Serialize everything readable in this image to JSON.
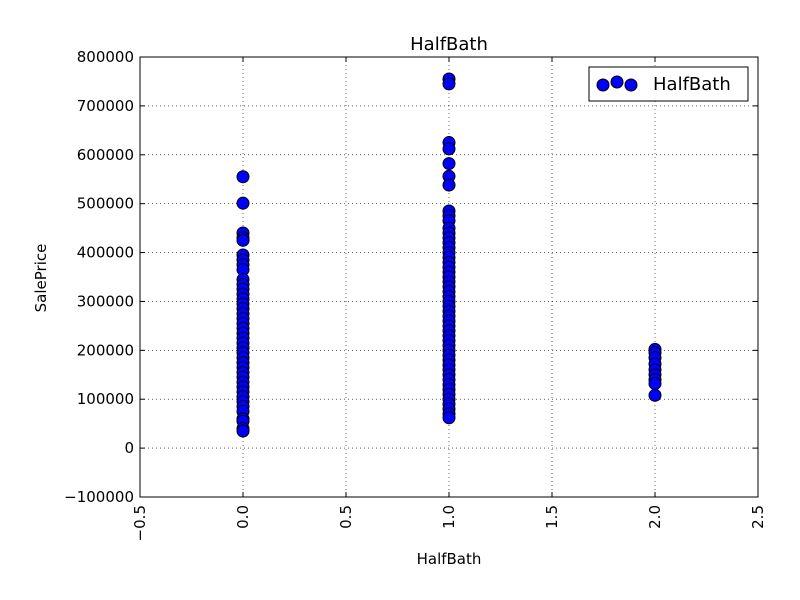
{
  "chart_data": {
    "type": "scatter",
    "title": "HalfBath",
    "xlabel": "HalfBath",
    "ylabel": "SalePrice",
    "xlim": [
      -0.5,
      2.5
    ],
    "ylim": [
      -100000,
      800000
    ],
    "xticks": [
      -0.5,
      0.0,
      0.5,
      1.0,
      1.5,
      2.0,
      2.5
    ],
    "xtick_labels": [
      "−0.5",
      "0.0",
      "0.5",
      "1.0",
      "1.5",
      "2.0",
      "2.5"
    ],
    "yticks": [
      -100000,
      0,
      100000,
      200000,
      300000,
      400000,
      500000,
      600000,
      700000,
      800000
    ],
    "ytick_labels": [
      "−100000",
      "0",
      "100000",
      "200000",
      "300000",
      "400000",
      "500000",
      "600000",
      "700000",
      "800000"
    ],
    "grid": true,
    "legend": {
      "placement": "top-right",
      "entries": [
        "HalfBath"
      ]
    },
    "marker_color": "#0000ff",
    "series": [
      {
        "name": "HalfBath",
        "points": [
          [
            0,
            555000
          ],
          [
            0,
            501000
          ],
          [
            0,
            440000
          ],
          [
            0,
            430000
          ],
          [
            0,
            425000
          ],
          [
            0,
            395000
          ],
          [
            0,
            385000
          ],
          [
            0,
            375000
          ],
          [
            0,
            365000
          ],
          [
            0,
            345000
          ],
          [
            0,
            335000
          ],
          [
            0,
            325000
          ],
          [
            0,
            315000
          ],
          [
            0,
            305000
          ],
          [
            0,
            295000
          ],
          [
            0,
            285000
          ],
          [
            0,
            275000
          ],
          [
            0,
            265000
          ],
          [
            0,
            255000
          ],
          [
            0,
            245000
          ],
          [
            0,
            235000
          ],
          [
            0,
            225000
          ],
          [
            0,
            215000
          ],
          [
            0,
            205000
          ],
          [
            0,
            195000
          ],
          [
            0,
            185000
          ],
          [
            0,
            175000
          ],
          [
            0,
            165000
          ],
          [
            0,
            155000
          ],
          [
            0,
            145000
          ],
          [
            0,
            135000
          ],
          [
            0,
            125000
          ],
          [
            0,
            115000
          ],
          [
            0,
            105000
          ],
          [
            0,
            95000
          ],
          [
            0,
            85000
          ],
          [
            0,
            75000
          ],
          [
            0,
            60000
          ],
          [
            0,
            55000
          ],
          [
            0,
            40000
          ],
          [
            0,
            35000
          ],
          [
            1,
            755000
          ],
          [
            1,
            745000
          ],
          [
            1,
            625000
          ],
          [
            1,
            612000
          ],
          [
            1,
            582000
          ],
          [
            1,
            556000
          ],
          [
            1,
            538000
          ],
          [
            1,
            485000
          ],
          [
            1,
            475000
          ],
          [
            1,
            465000
          ],
          [
            1,
            450000
          ],
          [
            1,
            440000
          ],
          [
            1,
            430000
          ],
          [
            1,
            420000
          ],
          [
            1,
            410000
          ],
          [
            1,
            400000
          ],
          [
            1,
            390000
          ],
          [
            1,
            380000
          ],
          [
            1,
            370000
          ],
          [
            1,
            360000
          ],
          [
            1,
            350000
          ],
          [
            1,
            340000
          ],
          [
            1,
            330000
          ],
          [
            1,
            320000
          ],
          [
            1,
            310000
          ],
          [
            1,
            300000
          ],
          [
            1,
            290000
          ],
          [
            1,
            280000
          ],
          [
            1,
            270000
          ],
          [
            1,
            260000
          ],
          [
            1,
            250000
          ],
          [
            1,
            240000
          ],
          [
            1,
            230000
          ],
          [
            1,
            220000
          ],
          [
            1,
            210000
          ],
          [
            1,
            200000
          ],
          [
            1,
            190000
          ],
          [
            1,
            180000
          ],
          [
            1,
            170000
          ],
          [
            1,
            160000
          ],
          [
            1,
            150000
          ],
          [
            1,
            140000
          ],
          [
            1,
            130000
          ],
          [
            1,
            120000
          ],
          [
            1,
            110000
          ],
          [
            1,
            100000
          ],
          [
            1,
            90000
          ],
          [
            1,
            80000
          ],
          [
            1,
            70000
          ],
          [
            1,
            62000
          ],
          [
            2,
            202000
          ],
          [
            2,
            195000
          ],
          [
            2,
            185000
          ],
          [
            2,
            172000
          ],
          [
            2,
            160000
          ],
          [
            2,
            150000
          ],
          [
            2,
            140000
          ],
          [
            2,
            132000
          ],
          [
            2,
            108000
          ]
        ]
      }
    ]
  }
}
